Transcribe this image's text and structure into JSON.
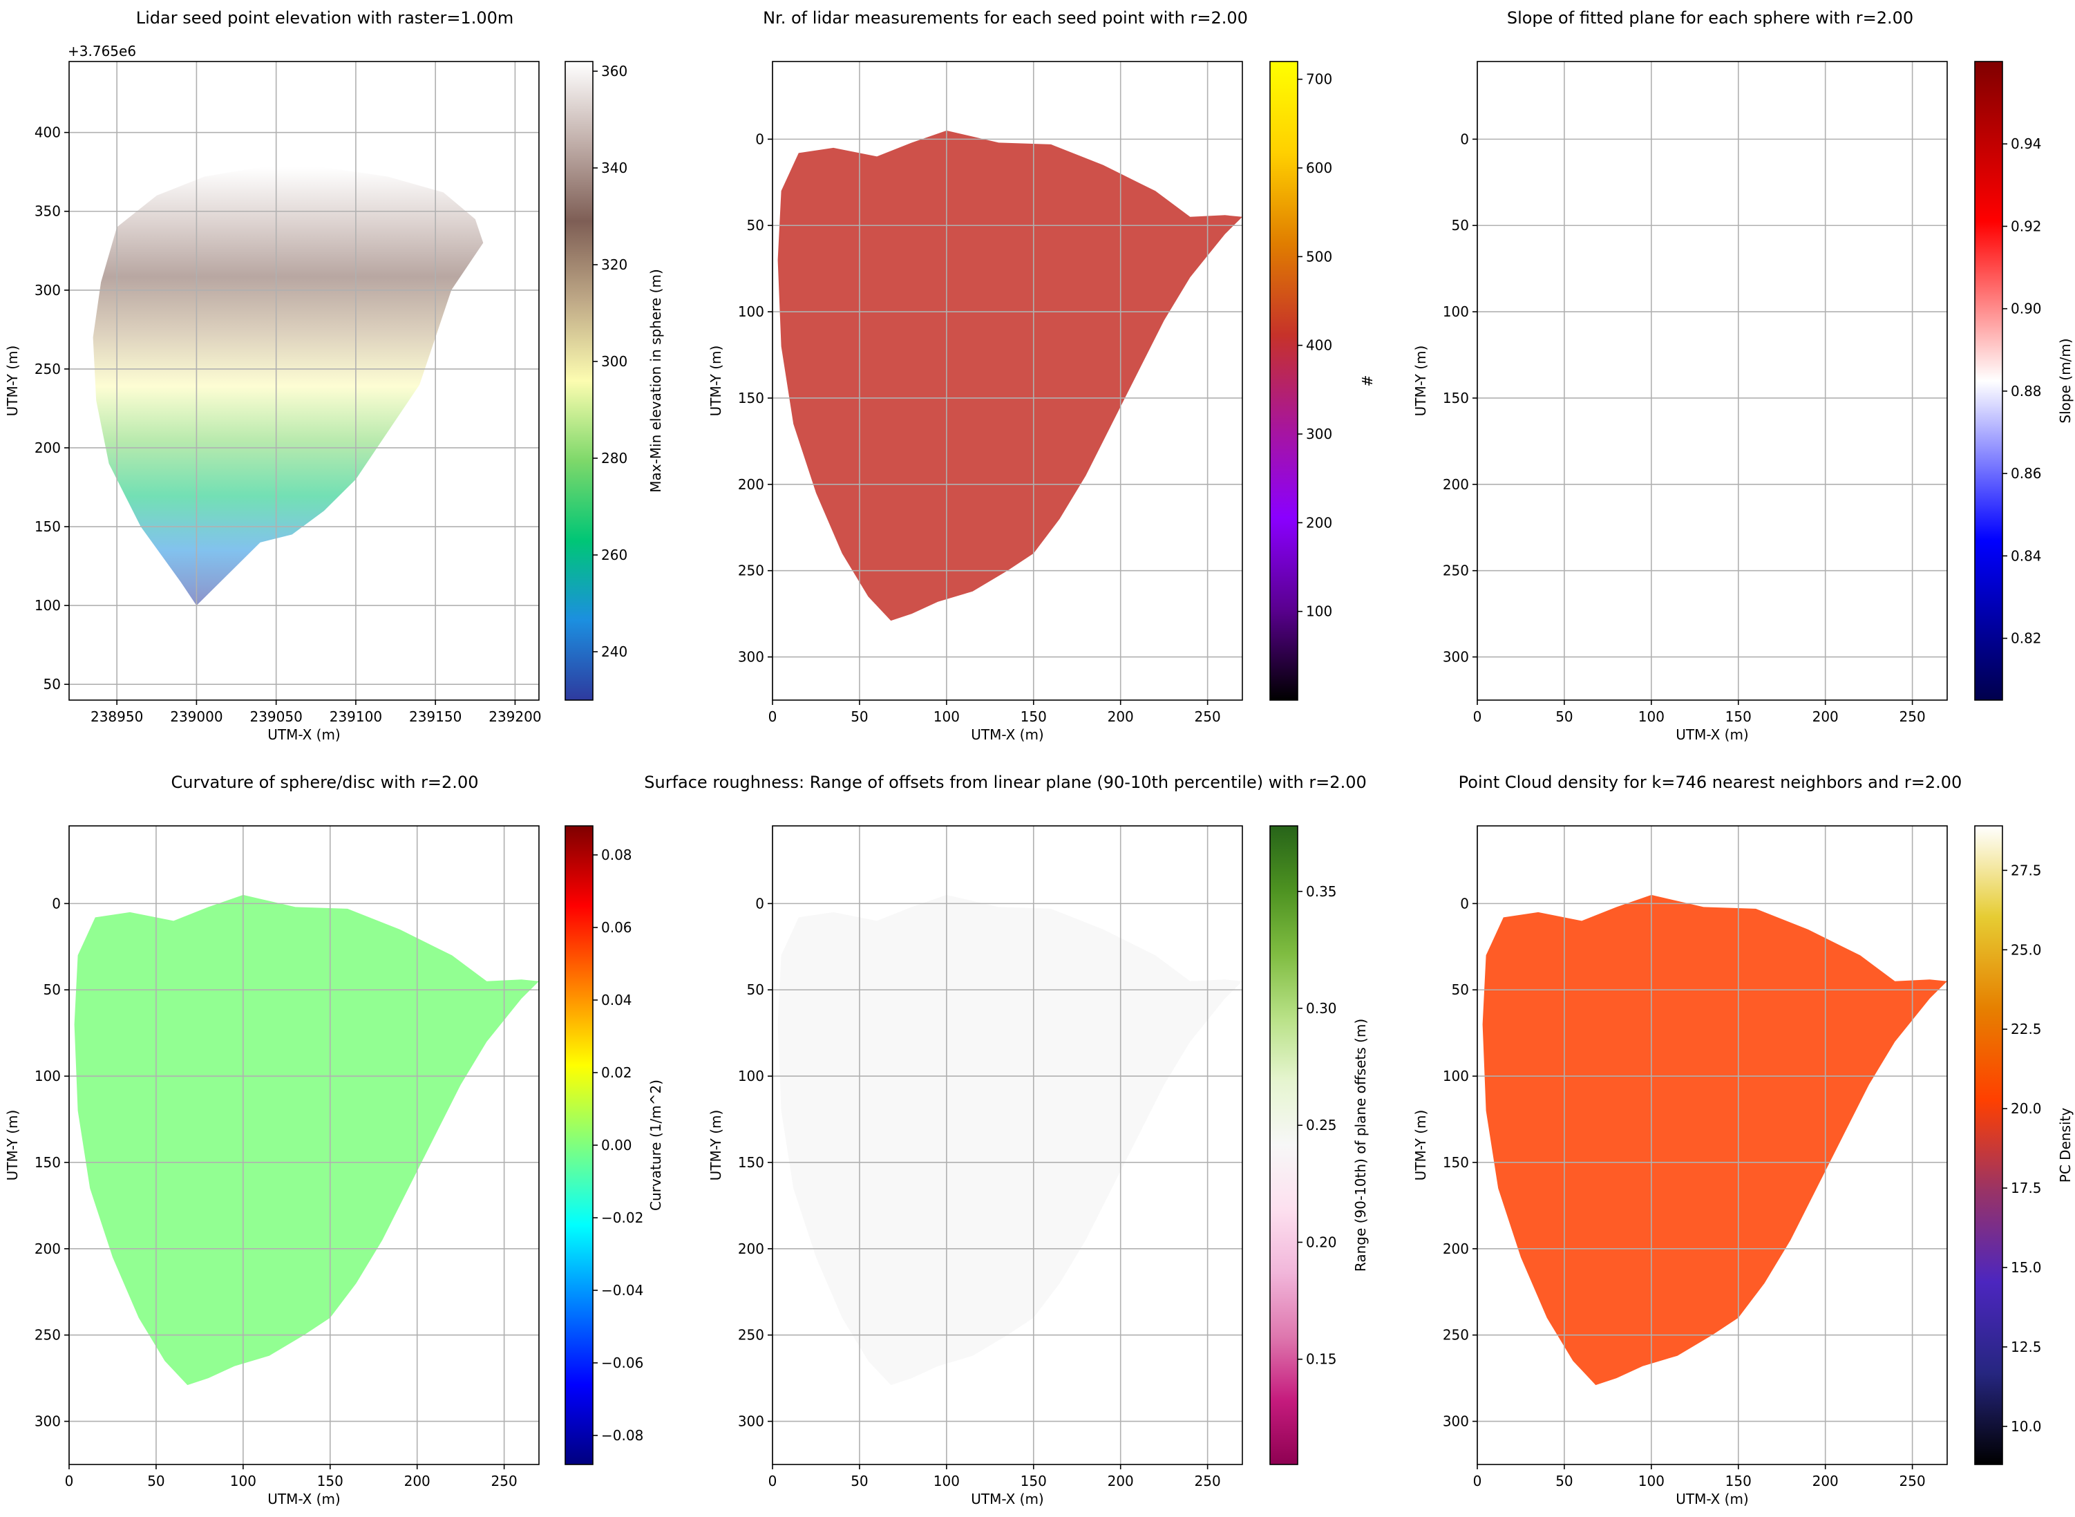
{
  "chart_data": [
    {
      "type": "heatmap",
      "title": "Lidar seed point elevation with raster=1.00m",
      "xlabel": "UTM-X (m)",
      "ylabel": "UTM-Y (m)",
      "xlim": [
        238920,
        239215
      ],
      "ylim": [
        40,
        445
      ],
      "y_offset_label": "+3.765e6",
      "y_inverted": false,
      "xticks": [
        238950,
        239000,
        239050,
        239100,
        239150,
        239200
      ],
      "xtick_labels": [
        "238950",
        "239000",
        "239050",
        "239100",
        "239150",
        "239200"
      ],
      "yticks": [
        50,
        100,
        150,
        200,
        250,
        300,
        350,
        400
      ],
      "ytick_labels": [
        "50",
        "100",
        "150",
        "200",
        "250",
        "300",
        "350",
        "400"
      ],
      "grid": true,
      "outline_x": [
        239000,
        238990,
        238965,
        238945,
        238937,
        238935,
        238940,
        238950,
        238975,
        239005,
        239040,
        239080,
        239120,
        239155,
        239175,
        239180,
        239160,
        239150,
        239140,
        239120,
        239100,
        239080,
        239060,
        239040,
        239020
      ],
      "outline_y": [
        100,
        115,
        150,
        190,
        230,
        270,
        305,
        340,
        360,
        372,
        378,
        378,
        372,
        362,
        345,
        330,
        300,
        270,
        240,
        210,
        180,
        160,
        145,
        140,
        120
      ],
      "colorbar": {
        "label": "Max-Min elevation in sphere (m)",
        "range": [
          230,
          362
        ],
        "ticks": [
          240,
          260,
          280,
          300,
          320,
          340,
          360
        ],
        "tick_labels": [
          "240",
          "260",
          "280",
          "300",
          "320",
          "340",
          "360"
        ],
        "colormap": "terrain",
        "colors": [
          "#2e3a9e",
          "#1c8fe0",
          "#00c676",
          "#7ed86a",
          "#fcfcb0",
          "#bfa987",
          "#7e5e55",
          "#c2b0ab",
          "#ffffff"
        ]
      }
    },
    {
      "type": "heatmap",
      "title": "Nr. of lidar measurements for each seed point with r=2.00",
      "xlabel": "UTM-X (m)",
      "ylabel": "UTM-Y (m)",
      "xlim": [
        0,
        270
      ],
      "ylim": [
        325,
        -45
      ],
      "y_inverted": true,
      "xticks": [
        0,
        50,
        100,
        150,
        200,
        250
      ],
      "xtick_labels": [
        "0",
        "50",
        "100",
        "150",
        "200",
        "250"
      ],
      "yticks": [
        0,
        50,
        100,
        150,
        200,
        250,
        300
      ],
      "ytick_labels": [
        "0",
        "50",
        "100",
        "150",
        "200",
        "250",
        "300"
      ],
      "grid": true,
      "outline_x": [
        68,
        55,
        40,
        25,
        12,
        5,
        3,
        5,
        15,
        35,
        60,
        80,
        100,
        130,
        160,
        190,
        220,
        240,
        260,
        270,
        260,
        240,
        225,
        210,
        195,
        180,
        165,
        150,
        135,
        115,
        95,
        80
      ],
      "outline_y": [
        279,
        265,
        240,
        205,
        165,
        120,
        70,
        30,
        8,
        5,
        10,
        2,
        -5,
        2,
        3,
        15,
        30,
        45,
        44,
        45,
        55,
        80,
        105,
        135,
        165,
        195,
        220,
        240,
        250,
        262,
        268,
        275
      ],
      "colorbar": {
        "label": "#",
        "range": [
          0,
          720
        ],
        "ticks": [
          100,
          200,
          300,
          400,
          500,
          600,
          700
        ],
        "tick_labels": [
          "100",
          "200",
          "300",
          "400",
          "500",
          "600",
          "700"
        ],
        "colormap": "gnuplot",
        "colors": [
          "#000000",
          "#5a0090",
          "#8a00ff",
          "#a8169a",
          "#c6322a",
          "#e07d00",
          "#ffd000",
          "#ffff00"
        ]
      }
    },
    {
      "type": "heatmap",
      "title": "Slope of fitted plane for each sphere with r=2.00",
      "xlabel": "UTM-X (m)",
      "ylabel": "UTM-Y (m)",
      "xlim": [
        0,
        270
      ],
      "ylim": [
        325,
        -45
      ],
      "y_inverted": true,
      "xticks": [
        0,
        50,
        100,
        150,
        200,
        250
      ],
      "xtick_labels": [
        "0",
        "50",
        "100",
        "150",
        "200",
        "250"
      ],
      "yticks": [
        0,
        50,
        100,
        150,
        200,
        250,
        300
      ],
      "ytick_labels": [
        "0",
        "50",
        "100",
        "150",
        "200",
        "250",
        "300"
      ],
      "grid": true,
      "outline_x": [
        68,
        55,
        40,
        25,
        12,
        5,
        3,
        5,
        15,
        35,
        60,
        80,
        100,
        130,
        160,
        190,
        220,
        240,
        260,
        270,
        260,
        240,
        225,
        210,
        195,
        180,
        165,
        150,
        135,
        115,
        95,
        80
      ],
      "outline_y": [
        279,
        265,
        240,
        205,
        165,
        120,
        70,
        30,
        8,
        5,
        10,
        2,
        -5,
        2,
        3,
        15,
        30,
        45,
        44,
        45,
        55,
        80,
        105,
        135,
        165,
        195,
        220,
        240,
        250,
        262,
        268,
        275
      ],
      "colorbar": {
        "label": "Slope (m/m)",
        "range": [
          0.805,
          0.96
        ],
        "ticks": [
          0.82,
          0.84,
          0.86,
          0.88,
          0.9,
          0.92,
          0.94
        ],
        "tick_labels": [
          "0.82",
          "0.84",
          "0.86",
          "0.88",
          "0.90",
          "0.92",
          "0.94"
        ],
        "colormap": "seismic",
        "colors": [
          "#00004c",
          "#0000ff",
          "#ffffff",
          "#ff0000",
          "#800000"
        ]
      }
    },
    {
      "type": "heatmap",
      "title": "Curvature of sphere/disc with r=2.00",
      "xlabel": "UTM-X (m)",
      "ylabel": "UTM-Y (m)",
      "xlim": [
        0,
        270
      ],
      "ylim": [
        325,
        -45
      ],
      "y_inverted": true,
      "xticks": [
        0,
        50,
        100,
        150,
        200,
        250
      ],
      "xtick_labels": [
        "0",
        "50",
        "100",
        "150",
        "200",
        "250"
      ],
      "yticks": [
        0,
        50,
        100,
        150,
        200,
        250,
        300
      ],
      "ytick_labels": [
        "0",
        "50",
        "100",
        "150",
        "200",
        "250",
        "300"
      ],
      "grid": true,
      "outline_x": [
        68,
        55,
        40,
        25,
        12,
        5,
        3,
        5,
        15,
        35,
        60,
        80,
        100,
        130,
        160,
        190,
        220,
        240,
        260,
        270,
        260,
        240,
        225,
        210,
        195,
        180,
        165,
        150,
        135,
        115,
        95,
        80
      ],
      "outline_y": [
        279,
        265,
        240,
        205,
        165,
        120,
        70,
        30,
        8,
        5,
        10,
        2,
        -5,
        2,
        3,
        15,
        30,
        45,
        44,
        45,
        55,
        80,
        105,
        135,
        165,
        195,
        220,
        240,
        250,
        262,
        268,
        275
      ],
      "colorbar": {
        "label": "Curvature (1/m^2)",
        "range": [
          -0.088,
          0.088
        ],
        "ticks": [
          -0.08,
          -0.06,
          -0.04,
          -0.02,
          0.0,
          0.02,
          0.04,
          0.06,
          0.08
        ],
        "tick_labels": [
          "−0.08",
          "−0.06",
          "−0.04",
          "−0.02",
          "0.00",
          "0.02",
          "0.04",
          "0.06",
          "0.08"
        ],
        "colormap": "jet",
        "colors": [
          "#00007f",
          "#0000ff",
          "#007fff",
          "#00ffff",
          "#7fff7f",
          "#ffff00",
          "#ff7f00",
          "#ff0000",
          "#7f0000"
        ]
      }
    },
    {
      "type": "heatmap",
      "title": "Surface roughness: Range of offsets from linear plane (90-10th percentile) with r=2.00",
      "xlabel": "UTM-X (m)",
      "ylabel": "UTM-Y (m)",
      "xlim": [
        0,
        270
      ],
      "ylim": [
        325,
        -45
      ],
      "y_inverted": true,
      "xticks": [
        0,
        50,
        100,
        150,
        200,
        250
      ],
      "xtick_labels": [
        "0",
        "50",
        "100",
        "150",
        "200",
        "250"
      ],
      "yticks": [
        0,
        50,
        100,
        150,
        200,
        250,
        300
      ],
      "ytick_labels": [
        "0",
        "50",
        "100",
        "150",
        "200",
        "250",
        "300"
      ],
      "grid": true,
      "outline_x": [
        68,
        55,
        40,
        25,
        12,
        5,
        3,
        5,
        15,
        35,
        60,
        80,
        100,
        130,
        160,
        190,
        220,
        240,
        260,
        270,
        260,
        240,
        225,
        210,
        195,
        180,
        165,
        150,
        135,
        115,
        95,
        80
      ],
      "outline_y": [
        279,
        265,
        240,
        205,
        165,
        120,
        70,
        30,
        8,
        5,
        10,
        2,
        -5,
        2,
        3,
        15,
        30,
        45,
        44,
        45,
        55,
        80,
        105,
        135,
        165,
        195,
        220,
        240,
        250,
        262,
        268,
        275
      ],
      "colorbar": {
        "label": "Range (90-10th) of plane offsets (m)",
        "range": [
          0.105,
          0.378
        ],
        "ticks": [
          0.15,
          0.2,
          0.25,
          0.3,
          0.35
        ],
        "tick_labels": [
          "0.15",
          "0.20",
          "0.25",
          "0.30",
          "0.35"
        ],
        "colormap": "PiYG",
        "colors": [
          "#8e0152",
          "#c51b7d",
          "#de77ae",
          "#f1b6da",
          "#fde0ef",
          "#f7f7f7",
          "#e6f5d0",
          "#b8e186",
          "#7fbc41",
          "#4d9221",
          "#276419"
        ]
      }
    },
    {
      "type": "heatmap",
      "title": "Point Cloud density for k=746 nearest neighbors and r=2.00",
      "xlabel": "UTM-X (m)",
      "ylabel": "UTM-Y (m)",
      "xlim": [
        0,
        270
      ],
      "ylim": [
        325,
        -45
      ],
      "y_inverted": true,
      "xticks": [
        0,
        50,
        100,
        150,
        200,
        250
      ],
      "xtick_labels": [
        "0",
        "50",
        "100",
        "150",
        "200",
        "250"
      ],
      "yticks": [
        0,
        50,
        100,
        150,
        200,
        250,
        300
      ],
      "ytick_labels": [
        "0",
        "50",
        "100",
        "150",
        "200",
        "250",
        "300"
      ],
      "grid": true,
      "outline_x": [
        68,
        55,
        40,
        25,
        12,
        5,
        3,
        5,
        15,
        35,
        60,
        80,
        100,
        130,
        160,
        190,
        220,
        240,
        260,
        270,
        260,
        240,
        225,
        210,
        195,
        180,
        165,
        150,
        135,
        115,
        95,
        80
      ],
      "outline_y": [
        279,
        265,
        240,
        205,
        165,
        120,
        70,
        30,
        8,
        5,
        10,
        2,
        -5,
        2,
        3,
        15,
        30,
        45,
        44,
        45,
        55,
        80,
        105,
        135,
        165,
        195,
        220,
        240,
        250,
        262,
        268,
        275
      ],
      "colorbar": {
        "label": "PC Density",
        "range": [
          8.8,
          28.9
        ],
        "ticks": [
          10,
          12.5,
          15,
          17.5,
          20,
          22.5,
          25,
          27.5
        ],
        "tick_labels": [
          "10.0",
          "12.5",
          "15.0",
          "17.5",
          "20.0",
          "22.5",
          "25.0",
          "27.5"
        ],
        "colormap": "CMRmap",
        "colors": [
          "#000000",
          "#262680",
          "#4c26bf",
          "#993366",
          "#ff4000",
          "#e68000",
          "#e6cc33",
          "#ffffff"
        ]
      }
    }
  ]
}
